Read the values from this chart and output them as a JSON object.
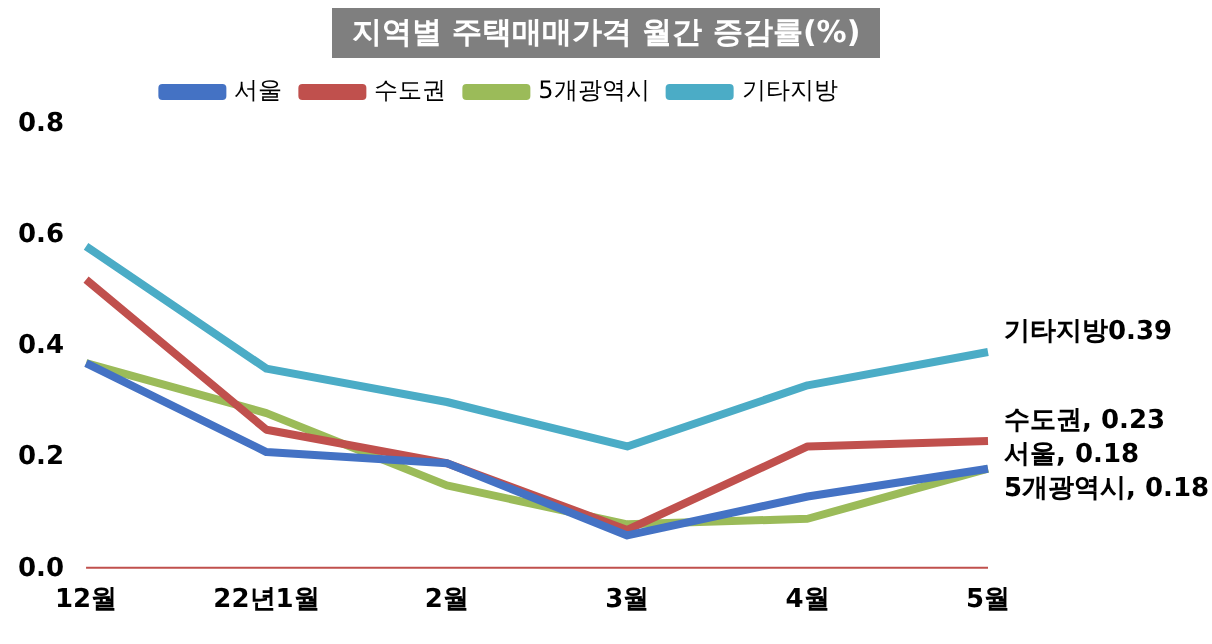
{
  "chart_data": {
    "type": "line",
    "title": "지역별 주택매매가격 월간 증감률(%)",
    "categories": [
      "12월",
      "22년1월",
      "2월",
      "3월",
      "4월",
      "5월"
    ],
    "series": [
      {
        "name": "서울",
        "color": "#4472c4",
        "values": [
          0.37,
          0.21,
          0.19,
          0.06,
          0.13,
          0.18
        ]
      },
      {
        "name": "수도권",
        "color": "#c0504d",
        "values": [
          0.52,
          0.25,
          0.19,
          0.07,
          0.22,
          0.23
        ]
      },
      {
        "name": "5개광역시",
        "color": "#9bbb59",
        "values": [
          0.37,
          0.28,
          0.15,
          0.08,
          0.09,
          0.18
        ]
      },
      {
        "name": "기타지방",
        "color": "#4bacc6",
        "values": [
          0.58,
          0.36,
          0.3,
          0.22,
          0.33,
          0.39
        ]
      }
    ],
    "ylim": [
      0,
      0.8
    ],
    "yticks": [
      {
        "value": 0,
        "label": "0.0"
      },
      {
        "value": 0.2,
        "label": "0.2"
      },
      {
        "value": 0.4,
        "label": "0.4"
      },
      {
        "value": 0.6,
        "label": "0.6"
      },
      {
        "value": 0.8,
        "label": "0.8"
      }
    ],
    "grid": false,
    "legend": "top",
    "marker": "none",
    "line_style": "solid",
    "ref_lines": [
      {
        "axis": "y",
        "value": 0,
        "color": "#c0504d"
      }
    ],
    "annotations": [
      {
        "text": "기타지방0.39",
        "x": "5월",
        "y": 0.39
      },
      {
        "text": "수도권, 0.23",
        "x": "5월",
        "y": 0.23
      },
      {
        "text": "서울, 0.18",
        "x": "5월",
        "y": 0.18
      },
      {
        "text": "5개광역시, 0.18",
        "x": "5월",
        "y": 0.18
      }
    ]
  }
}
